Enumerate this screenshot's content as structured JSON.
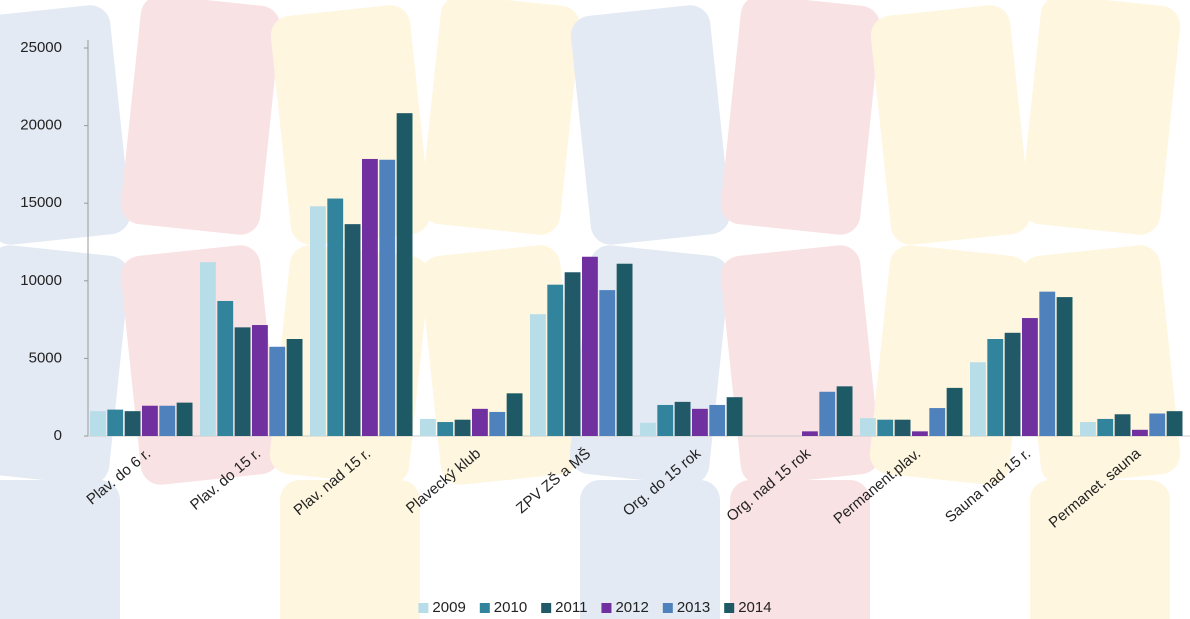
{
  "chart_data": {
    "type": "bar",
    "categories": [
      "Plav. do 6 r.",
      "Plav. do 15 r.",
      "Plav. nad 15 r.",
      "Plavecký klub",
      "ZPV ZŠ a MŠ",
      "Org. do 15 rok",
      "Org. nad 15 rok",
      "Permanent.plav.",
      "Sauna nad 15 r.",
      "Permanet. sauna"
    ],
    "series": [
      {
        "name": "2009",
        "color": "#b7dde8",
        "values": [
          1600,
          11200,
          14800,
          1100,
          7850,
          850,
          0,
          1150,
          4750,
          900
        ]
      },
      {
        "name": "2010",
        "color": "#31849b",
        "values": [
          1700,
          8700,
          15300,
          900,
          9750,
          2000,
          0,
          1050,
          6250,
          1100
        ]
      },
      {
        "name": "2011",
        "color": "#215968",
        "values": [
          1600,
          7000,
          13650,
          1050,
          10550,
          2200,
          0,
          1050,
          6650,
          1400
        ]
      },
      {
        "name": "2012",
        "color": "#7030a0",
        "values": [
          1950,
          7150,
          17850,
          1750,
          11550,
          1750,
          300,
          300,
          7600,
          400
        ]
      },
      {
        "name": "2013",
        "color": "#4f81bd",
        "values": [
          1950,
          5750,
          17800,
          1550,
          9400,
          2000,
          2850,
          1800,
          9300,
          1450
        ]
      },
      {
        "name": "2014",
        "color": "#1d5a66",
        "values": [
          2150,
          6250,
          20800,
          2750,
          11100,
          2500,
          3200,
          3100,
          8950,
          1600
        ]
      }
    ],
    "ylim": [
      0,
      25000
    ],
    "yticks": [
      0,
      5000,
      10000,
      15000,
      20000,
      25000
    ],
    "grid": false,
    "legend": "bottom"
  }
}
